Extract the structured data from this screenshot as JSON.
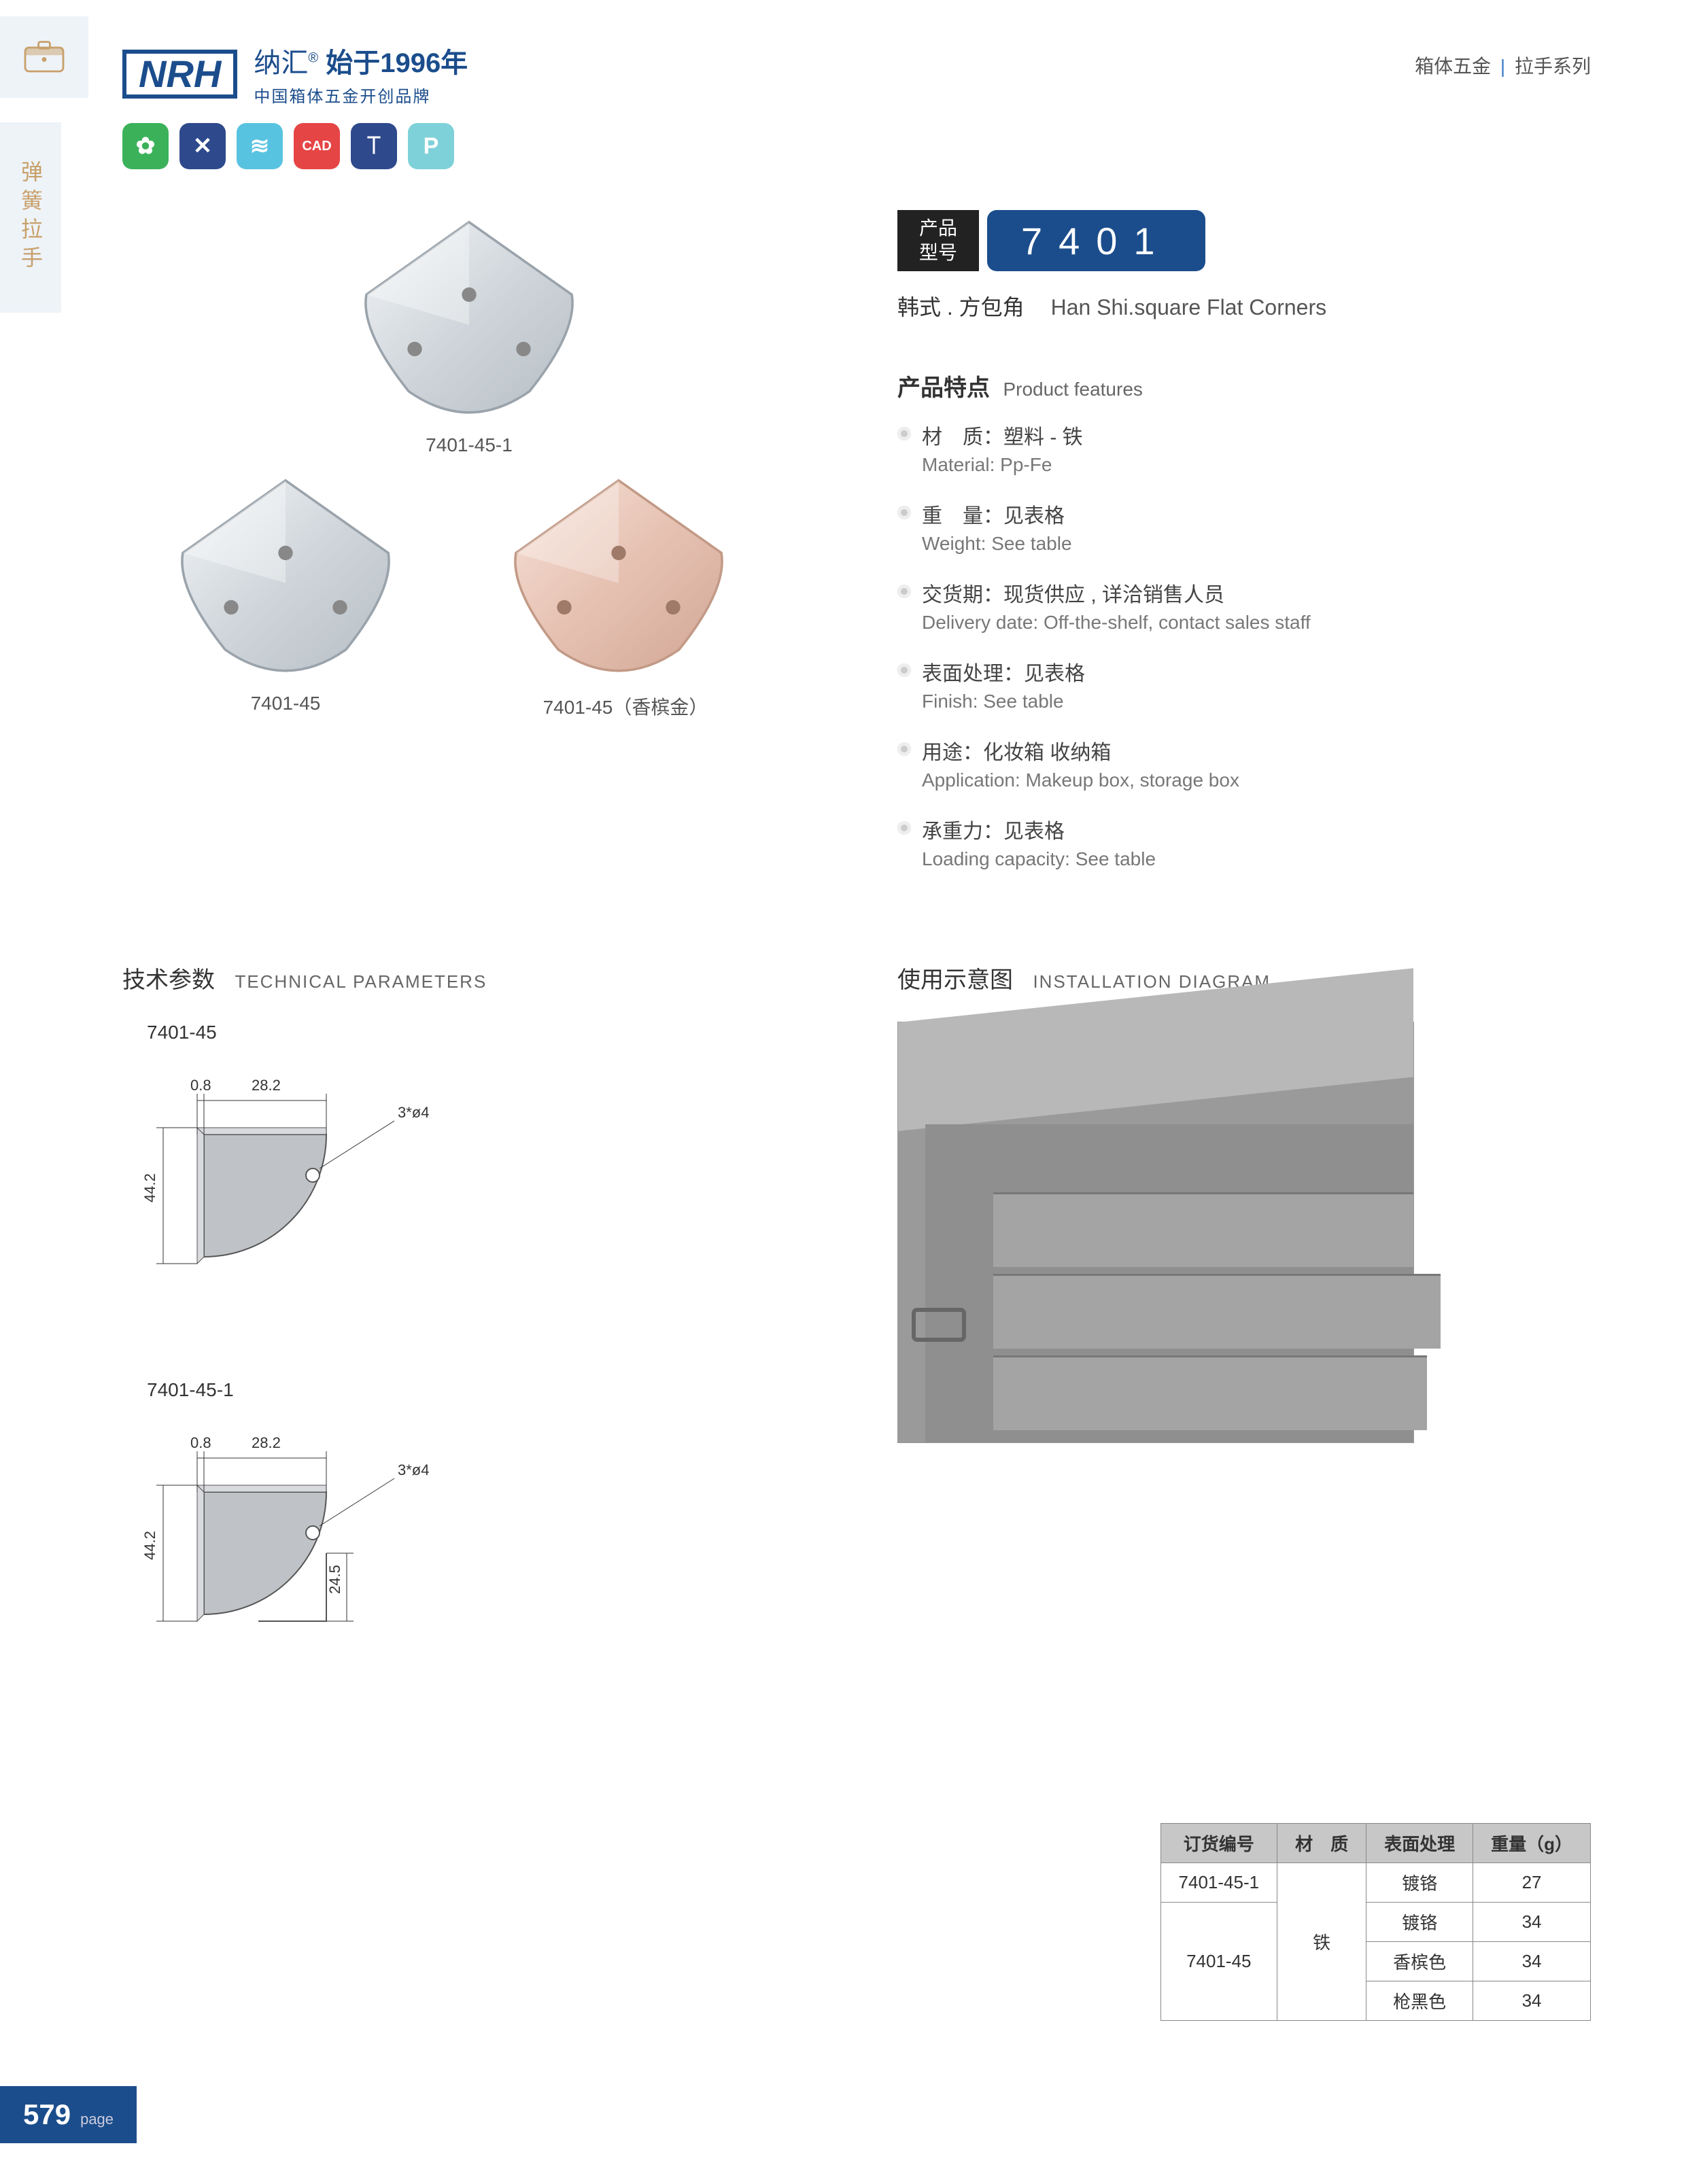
{
  "header": {
    "logo_text": "NRH",
    "brand_cn": "纳汇",
    "brand_since": "始于1996年",
    "brand_sub": "中国箱体五金开创品牌",
    "crumb_left": "箱体五金",
    "crumb_right": "拉手系列"
  },
  "side_tab": "弹簧拉手",
  "icon_row": [
    {
      "bg": "#3bb25a",
      "glyph": "✿"
    },
    {
      "bg": "#2e4a8c",
      "glyph": "✕"
    },
    {
      "bg": "#58c3e0",
      "glyph": "≋"
    },
    {
      "bg": "#e64545",
      "glyph": "CAD"
    },
    {
      "bg": "#2e4a8c",
      "glyph": "⟙"
    },
    {
      "bg": "#7fd1d9",
      "glyph": "P"
    }
  ],
  "model": {
    "label": "产品\n型号",
    "number": "7401",
    "subtitle_cn": "韩式 . 方包角",
    "subtitle_en": "Han Shi.square Flat Corners"
  },
  "product_labels": {
    "top": "7401-45-1",
    "bottom_left": "7401-45",
    "bottom_right": "7401-45（香槟金）"
  },
  "features": {
    "heading_cn": "产品特点",
    "heading_en": "Product features",
    "items": [
      {
        "cn": "材　质：塑料 - 铁",
        "en": "Material: Pp-Fe"
      },
      {
        "cn": "重　量：见表格",
        "en": "Weight: See table"
      },
      {
        "cn": "交货期：现货供应 , 详洽销售人员",
        "en": "Delivery date: Off-the-shelf, contact sales staff"
      },
      {
        "cn": "表面处理：见表格",
        "en": "Finish: See table"
      },
      {
        "cn": "用途：化妆箱 收纳箱",
        "en": "Application: Makeup box, storage box"
      },
      {
        "cn": "承重力：见表格",
        "en": "Loading capacity: See table"
      }
    ]
  },
  "sections": {
    "tech_cn": "技术参数",
    "tech_en": "TECHNICAL PARAMETERS",
    "install_cn": "使用示意图",
    "install_en": "INSTALLATION DIAGRAM"
  },
  "diagrams": {
    "d1": {
      "label": "7401-45",
      "dim_top_left": "0.8",
      "dim_top_right": "28.2",
      "dim_side": "44.2",
      "holes": "3*ø4"
    },
    "d2": {
      "label": "7401-45-1",
      "dim_top_left": "0.8",
      "dim_top_right": "28.2",
      "dim_side": "44.2",
      "dim_inner": "24.5",
      "holes": "3*ø4"
    }
  },
  "spec_table": {
    "headers": [
      "订货编号",
      "材　质",
      "表面处理",
      "重量（g）"
    ],
    "rows": [
      {
        "code": "7401-45-1",
        "material_rowspan_text": "铁",
        "finish": "镀铬",
        "weight": "27"
      },
      {
        "code_rowspan_text": "7401-45",
        "finish": "镀铬",
        "weight": "34"
      },
      {
        "finish": "香槟色",
        "weight": "34"
      },
      {
        "finish": "枪黑色",
        "weight": "34"
      }
    ]
  },
  "page_number": "579",
  "page_label": "page",
  "colors": {
    "brand_blue": "#1b4d8c",
    "light_blue_bg": "#eef3f8",
    "side_text": "#c8a06a",
    "champagne": "#e6c1b2",
    "silver1": "#d9dde1",
    "silver2": "#bfc6cc"
  }
}
